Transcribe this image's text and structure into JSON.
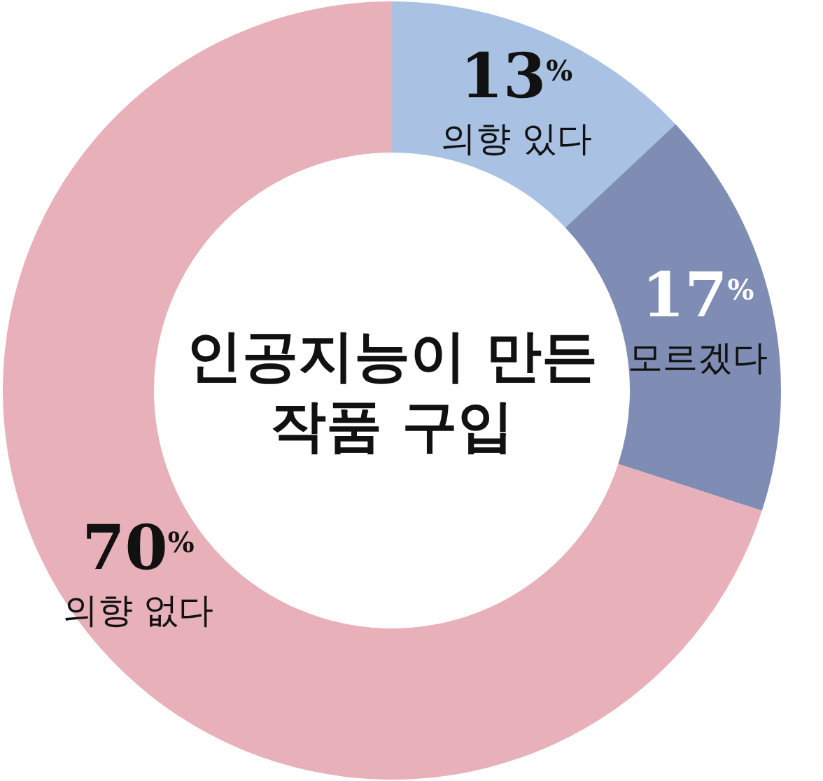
{
  "chart_data": {
    "type": "donut",
    "title": "인공지능이 만든\n작품 구입",
    "categories": [
      "의향 있다",
      "모르겠다",
      "의향 없다"
    ],
    "values": [
      13,
      17,
      70
    ],
    "colors": [
      "#a9c1e2",
      "#7f8db5",
      "#e8b0b8"
    ],
    "value_labels": [
      "13$^{%}$",
      "17$^{%}$",
      "70$^{%}$"
    ]
  }
}
